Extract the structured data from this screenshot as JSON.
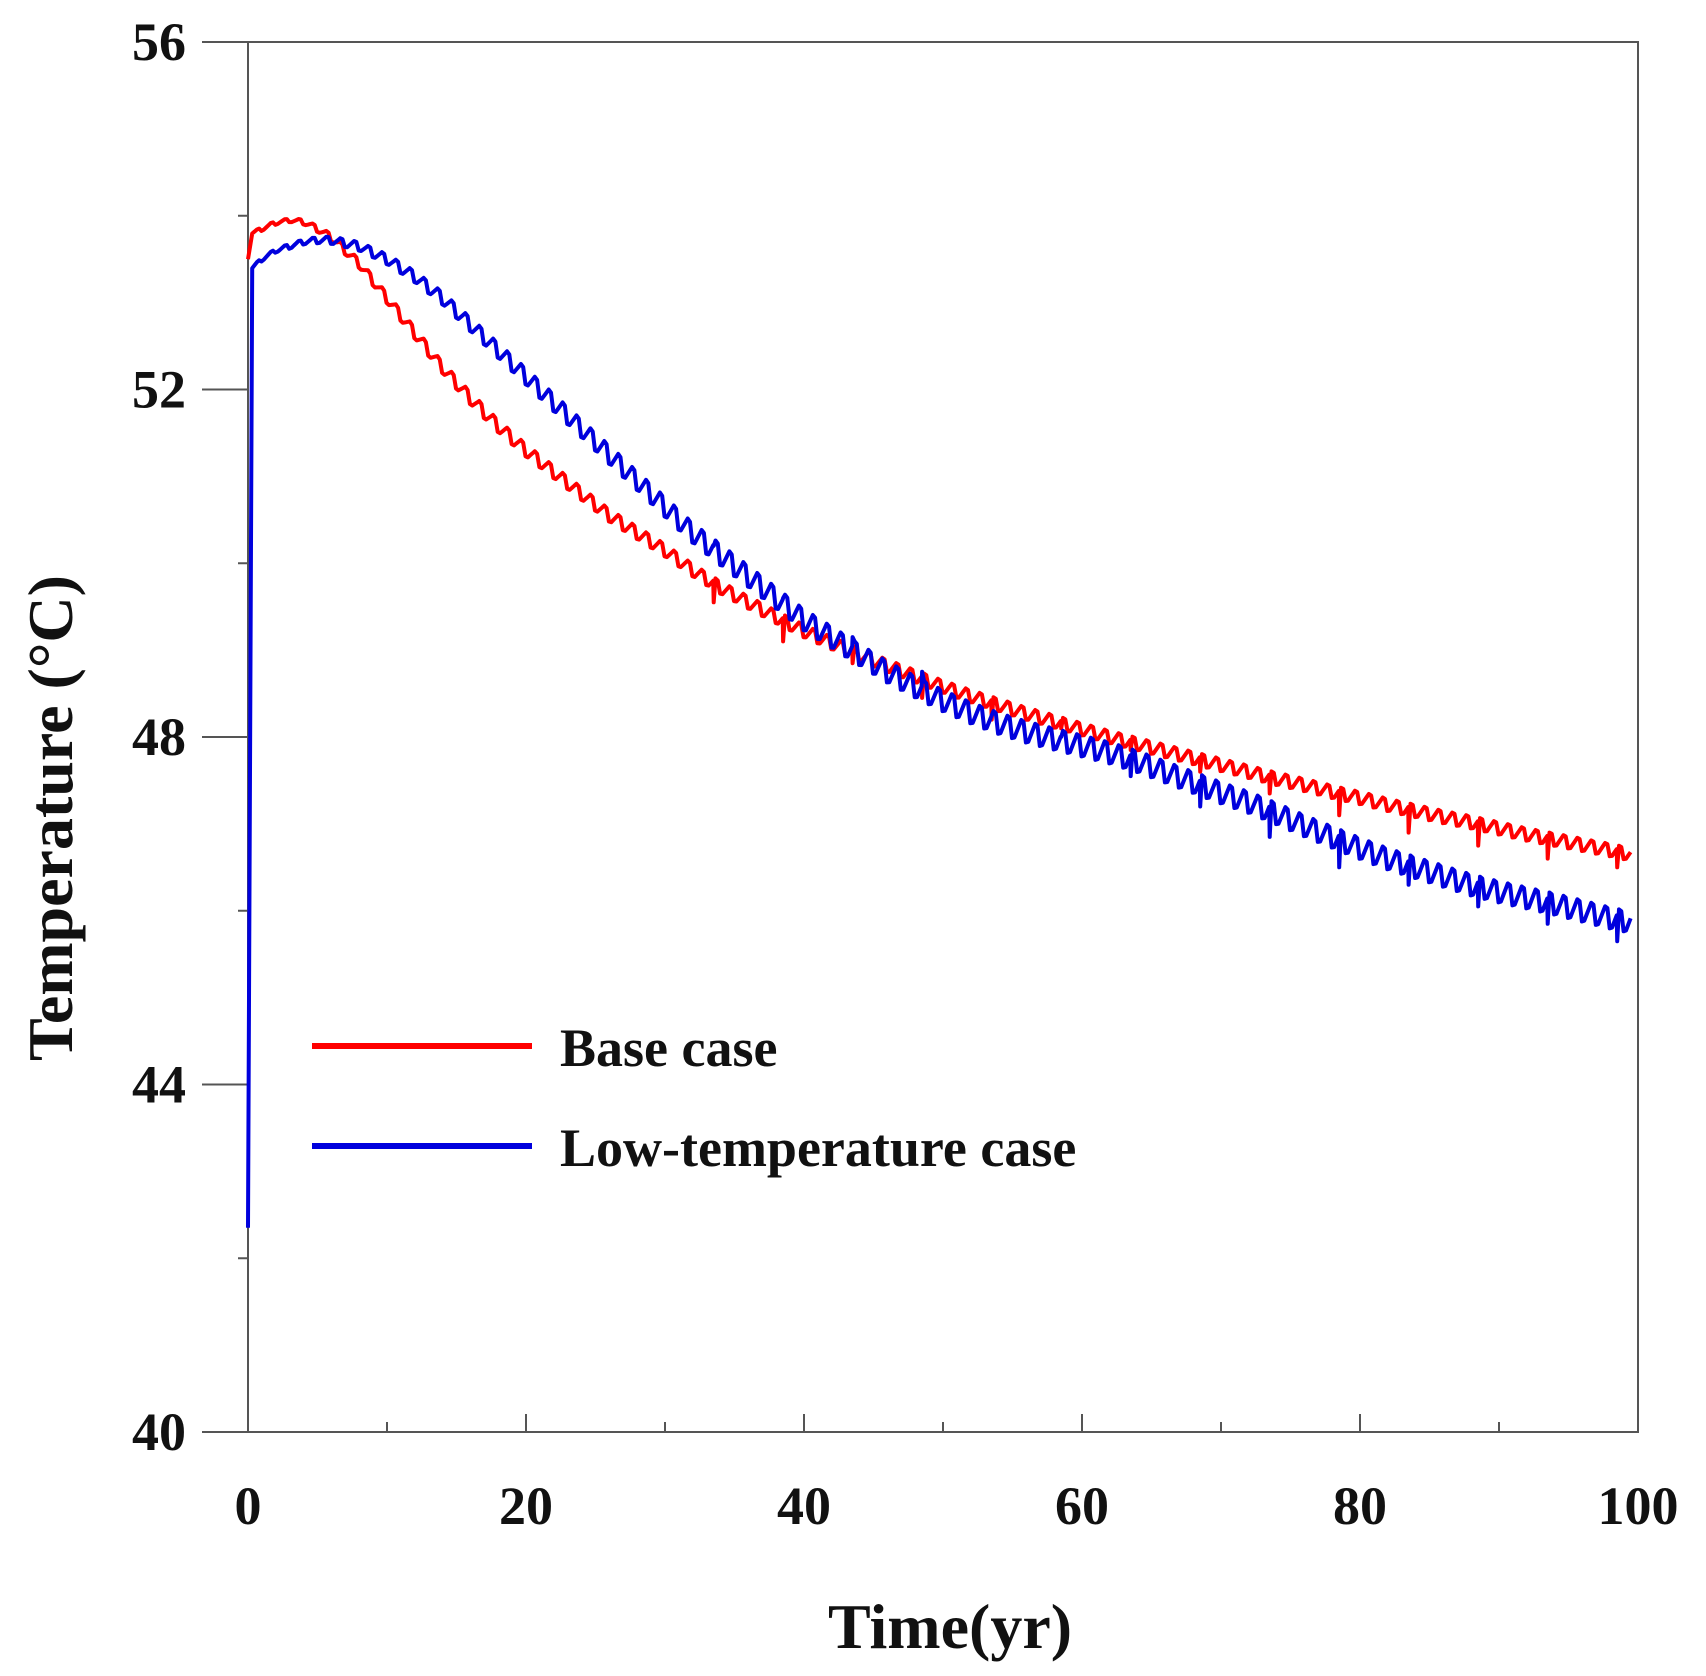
{
  "chart_data": {
    "type": "line",
    "title": "",
    "xlabel": "Time(yr)",
    "ylabel": "Temperature (°C)",
    "xlim": [
      0,
      100
    ],
    "ylim": [
      40,
      56
    ],
    "x_ticks": [
      0,
      20,
      40,
      60,
      80,
      100
    ],
    "x_tick_labels": [
      "0",
      "20",
      "40",
      "60",
      "80",
      "100"
    ],
    "x_minor_ticks": [
      10,
      30,
      50,
      70,
      90
    ],
    "y_ticks": [
      40,
      44,
      48,
      52,
      56
    ],
    "y_tick_labels": [
      "40",
      "44",
      "48",
      "52",
      "56"
    ],
    "y_minor_ticks": [
      42,
      46,
      50,
      54
    ],
    "grid": false,
    "legend_position": "center-left",
    "oscillation_period_yr": 1,
    "series": [
      {
        "name": "Base case",
        "color": "#ff0000",
        "x": [
          0,
          0.3,
          1,
          2,
          3,
          4,
          5,
          6,
          8,
          10,
          12,
          14,
          16,
          18,
          20,
          22,
          24,
          26,
          28,
          30,
          32,
          34,
          36,
          38,
          40,
          42,
          44,
          46,
          48,
          50,
          52,
          54,
          56,
          58,
          60,
          62,
          64,
          66,
          68,
          70,
          72,
          74,
          76,
          78,
          80,
          82,
          84,
          86,
          88,
          90,
          92,
          94,
          96,
          98,
          99.5
        ],
        "values": [
          53.5,
          53.8,
          53.85,
          53.92,
          53.95,
          53.93,
          53.85,
          53.75,
          53.45,
          53.05,
          52.65,
          52.25,
          51.9,
          51.58,
          51.3,
          51.05,
          50.8,
          50.55,
          50.35,
          50.15,
          49.92,
          49.72,
          49.55,
          49.38,
          49.22,
          49.08,
          48.95,
          48.82,
          48.7,
          48.58,
          48.47,
          48.37,
          48.27,
          48.18,
          48.09,
          48.0,
          47.92,
          47.84,
          47.76,
          47.68,
          47.6,
          47.52,
          47.45,
          47.37,
          47.3,
          47.22,
          47.15,
          47.08,
          47.02,
          46.95,
          46.88,
          46.82,
          46.76,
          46.7,
          46.65
        ],
        "amplitude": [
          0,
          0.02,
          0.03,
          0.03,
          0.03,
          0.04,
          0.05,
          0.06,
          0.07,
          0.08,
          0.09,
          0.09,
          0.1,
          0.1,
          0.1,
          0.1,
          0.1,
          0.1,
          0.1,
          0.1,
          0.1,
          0.1,
          0.1,
          0.1,
          0.1,
          0.1,
          0.1,
          0.1,
          0.1,
          0.1,
          0.1,
          0.1,
          0.1,
          0.1,
          0.1,
          0.1,
          0.1,
          0.1,
          0.1,
          0.1,
          0.1,
          0.1,
          0.1,
          0.1,
          0.1,
          0.1,
          0.1,
          0.1,
          0.1,
          0.1,
          0.1,
          0.1,
          0.1,
          0.1,
          0.1
        ],
        "dips": [
          {
            "x": 33.5,
            "y": 49.55
          },
          {
            "x": 38.5,
            "y": 49.1
          },
          {
            "x": 43.5,
            "y": 48.85
          },
          {
            "x": 48.5,
            "y": 48.45
          },
          {
            "x": 53.5,
            "y": 48.2
          },
          {
            "x": 58.5,
            "y": 48.1
          },
          {
            "x": 63.5,
            "y": 47.85
          },
          {
            "x": 68.5,
            "y": 47.6
          },
          {
            "x": 73.5,
            "y": 47.35
          },
          {
            "x": 78.5,
            "y": 47.1
          },
          {
            "x": 83.5,
            "y": 46.9
          },
          {
            "x": 88.5,
            "y": 46.75
          },
          {
            "x": 93.5,
            "y": 46.6
          },
          {
            "x": 98.5,
            "y": 46.5
          }
        ]
      },
      {
        "name": "Low-temperature case",
        "color": "#0000dd",
        "x": [
          0,
          0.3,
          1,
          2,
          3,
          4,
          5,
          6,
          8,
          10,
          12,
          14,
          16,
          18,
          20,
          22,
          24,
          26,
          28,
          30,
          32,
          34,
          36,
          38,
          40,
          42,
          44,
          46,
          48,
          50,
          52,
          54,
          56,
          58,
          60,
          62,
          64,
          66,
          68,
          70,
          72,
          74,
          76,
          78,
          80,
          82,
          84,
          86,
          88,
          90,
          92,
          94,
          96,
          98,
          99.5
        ],
        "values": [
          42.35,
          53.4,
          53.5,
          53.6,
          53.65,
          53.7,
          53.72,
          53.72,
          53.65,
          53.5,
          53.3,
          53.05,
          52.75,
          52.45,
          52.15,
          51.85,
          51.55,
          51.25,
          50.95,
          50.65,
          50.35,
          50.1,
          49.85,
          49.6,
          49.35,
          49.15,
          48.95,
          48.75,
          48.58,
          48.42,
          48.28,
          48.16,
          48.06,
          47.98,
          47.9,
          47.82,
          47.72,
          47.6,
          47.48,
          47.36,
          47.25,
          47.12,
          46.98,
          46.85,
          46.72,
          46.6,
          46.5,
          46.4,
          46.3,
          46.22,
          46.15,
          46.08,
          46.0,
          45.92,
          45.87
        ],
        "amplitude": [
          0,
          0.02,
          0.03,
          0.03,
          0.04,
          0.04,
          0.05,
          0.06,
          0.07,
          0.08,
          0.09,
          0.1,
          0.11,
          0.12,
          0.13,
          0.14,
          0.14,
          0.15,
          0.15,
          0.16,
          0.16,
          0.17,
          0.17,
          0.17,
          0.17,
          0.17,
          0.17,
          0.17,
          0.17,
          0.17,
          0.17,
          0.17,
          0.17,
          0.17,
          0.17,
          0.17,
          0.17,
          0.17,
          0.17,
          0.17,
          0.17,
          0.17,
          0.17,
          0.17,
          0.17,
          0.17,
          0.17,
          0.17,
          0.17,
          0.17,
          0.17,
          0.17,
          0.17,
          0.17,
          0.17
        ],
        "dips": [
          {
            "x": 33.5,
            "y": 50.2
          },
          {
            "x": 38.5,
            "y": 49.6
          },
          {
            "x": 43.5,
            "y": 49.15
          },
          {
            "x": 48.5,
            "y": 48.75
          },
          {
            "x": 53.5,
            "y": 48.25
          },
          {
            "x": 58.5,
            "y": 48.0
          },
          {
            "x": 63.5,
            "y": 47.55
          },
          {
            "x": 68.5,
            "y": 47.2
          },
          {
            "x": 73.5,
            "y": 46.85
          },
          {
            "x": 78.5,
            "y": 46.5
          },
          {
            "x": 83.5,
            "y": 46.3
          },
          {
            "x": 88.5,
            "y": 46.05
          },
          {
            "x": 93.5,
            "y": 45.85
          },
          {
            "x": 98.5,
            "y": 45.65
          }
        ]
      }
    ]
  }
}
